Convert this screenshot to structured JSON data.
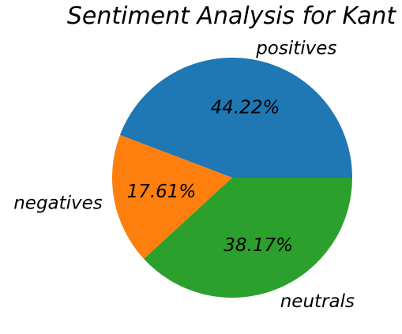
{
  "chart_data": {
    "type": "pie",
    "title": "Sentiment Analysis for Kant",
    "slices": [
      {
        "label": "positives",
        "value": 44.22,
        "pct_label": "44.22%",
        "color": "#1f77b4"
      },
      {
        "label": "negatives",
        "value": 17.61,
        "pct_label": "17.61%",
        "color": "#ff7f0e"
      },
      {
        "label": "neutrals",
        "value": 38.17,
        "pct_label": "38.17%",
        "color": "#2ca02c"
      }
    ],
    "legend": "none"
  }
}
